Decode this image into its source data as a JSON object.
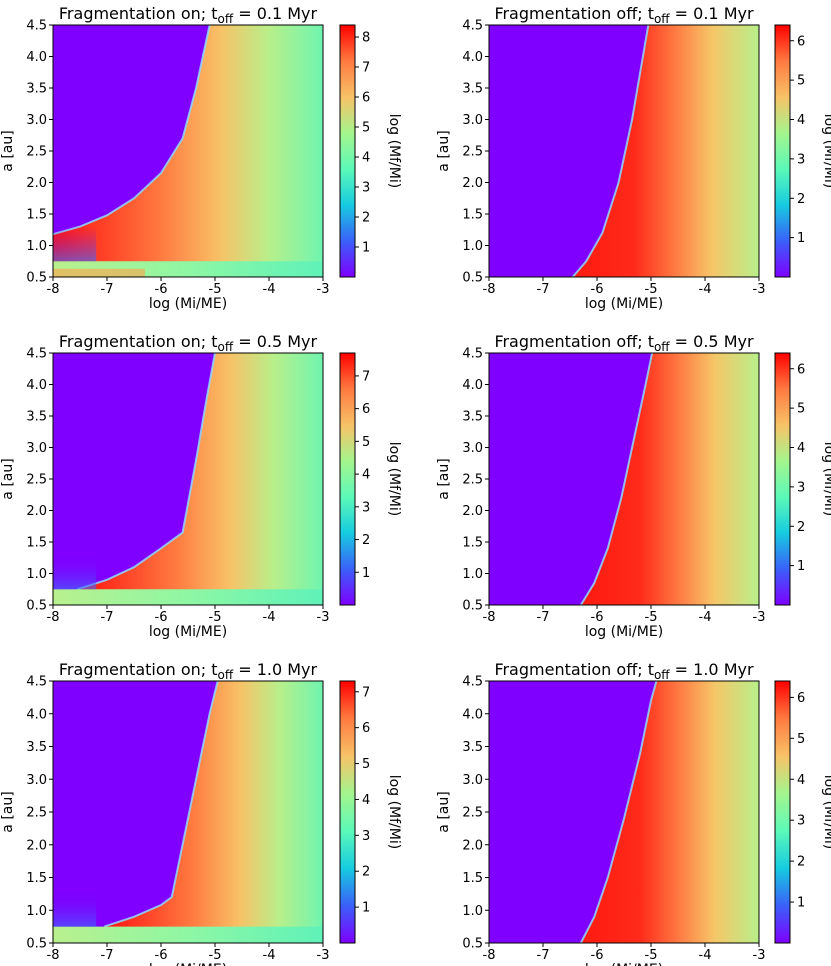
{
  "colormap": [
    "#7f00ff",
    "#3a60f9",
    "#16cce0",
    "#5cf9b8",
    "#a4f58d",
    "#f8c267",
    "#ff7a40",
    "#ff0000"
  ],
  "chart_data": [
    {
      "type": "heatmap",
      "panel": "top-left",
      "title_main": "Fragmentation on; t",
      "title_sub": "off",
      "title_tail": " = 0.1 Myr",
      "xlabel": "log (Mi/ME)",
      "ylabel": "a [au]",
      "xlim": [
        -8,
        -3
      ],
      "ylim": [
        0.5,
        4.5
      ],
      "xticks": [
        "-8",
        "-7",
        "-6",
        "-5",
        "-4",
        "-3"
      ],
      "yticks": [
        "0.5",
        "1.0",
        "1.5",
        "2.0",
        "2.5",
        "3.0",
        "3.5",
        "4.0",
        "4.5"
      ],
      "colorbar_label": "log (Mf/Mi)",
      "colorbar_max": 8.4,
      "colorbar_ticks": [
        "1",
        "2",
        "3",
        "4",
        "5",
        "6",
        "7",
        "8"
      ],
      "fragmentation": true,
      "boundary": [
        [
          -8,
          1.18
        ],
        [
          -7.5,
          1.3
        ],
        [
          -7,
          1.48
        ],
        [
          -6.5,
          1.75
        ],
        [
          -6,
          2.15
        ],
        [
          -5.6,
          2.7
        ],
        [
          -5.35,
          3.5
        ],
        [
          -5.1,
          4.5
        ]
      ],
      "ice_line": 0.75
    },
    {
      "type": "heatmap",
      "panel": "top-right",
      "title_main": "Fragmentation off; t",
      "title_sub": "off",
      "title_tail": " = 0.1 Myr",
      "xlabel": "log (Mi/ME)",
      "ylabel": "a [au]",
      "xlim": [
        -8,
        -3
      ],
      "ylim": [
        0.5,
        4.5
      ],
      "xticks": [
        "-8",
        "-7",
        "-6",
        "-5",
        "-4",
        "-3"
      ],
      "yticks": [
        "0.5",
        "1.0",
        "1.5",
        "2.0",
        "2.5",
        "3.0",
        "3.5",
        "4.0",
        "4.5"
      ],
      "colorbar_label": "log (Mf/Mi)",
      "colorbar_max": 6.4,
      "colorbar_ticks": [
        "1",
        "2",
        "3",
        "4",
        "5",
        "6"
      ],
      "fragmentation": false,
      "boundary": [
        [
          -6.45,
          0.5
        ],
        [
          -6.2,
          0.75
        ],
        [
          -5.9,
          1.2
        ],
        [
          -5.6,
          2.0
        ],
        [
          -5.35,
          3.0
        ],
        [
          -5.15,
          4.0
        ],
        [
          -5.05,
          4.5
        ]
      ]
    },
    {
      "type": "heatmap",
      "panel": "middle-left",
      "title_main": "Fragmentation on; t",
      "title_sub": "off",
      "title_tail": " = 0.5 Myr",
      "xlabel": "log (Mi/ME)",
      "ylabel": "a [au]",
      "xlim": [
        -8,
        -3
      ],
      "ylim": [
        0.5,
        4.5
      ],
      "xticks": [
        "-8",
        "-7",
        "-6",
        "-5",
        "-4",
        "-3"
      ],
      "yticks": [
        "0.5",
        "1.0",
        "1.5",
        "2.0",
        "2.5",
        "3.0",
        "3.5",
        "4.0",
        "4.5"
      ],
      "colorbar_label": "log (Mf/Mi)",
      "colorbar_max": 7.7,
      "colorbar_ticks": [
        "1",
        "2",
        "3",
        "4",
        "5",
        "6",
        "7"
      ],
      "fragmentation": true,
      "boundary": [
        [
          -7.55,
          0.75
        ],
        [
          -7,
          0.9
        ],
        [
          -6.5,
          1.1
        ],
        [
          -6,
          1.4
        ],
        [
          -5.6,
          1.65
        ],
        [
          -5.35,
          2.8
        ],
        [
          -5.15,
          3.8
        ],
        [
          -5.0,
          4.5
        ]
      ],
      "ice_line": 0.75
    },
    {
      "type": "heatmap",
      "panel": "middle-right",
      "title_main": "Fragmentation off; t",
      "title_sub": "off",
      "title_tail": " = 0.5 Myr",
      "xlabel": "log (Mi/ME)",
      "ylabel": "a [au]",
      "xlim": [
        -8,
        -3
      ],
      "ylim": [
        0.5,
        4.5
      ],
      "xticks": [
        "-8",
        "-7",
        "-6",
        "-5",
        "-4",
        "-3"
      ],
      "yticks": [
        "0.5",
        "1.0",
        "1.5",
        "2.0",
        "2.5",
        "3.0",
        "3.5",
        "4.0",
        "4.5"
      ],
      "colorbar_label": "log (Mf/Mi)",
      "colorbar_max": 6.4,
      "colorbar_ticks": [
        "1",
        "2",
        "3",
        "4",
        "5",
        "6"
      ],
      "fragmentation": false,
      "boundary": [
        [
          -6.3,
          0.5
        ],
        [
          -6.05,
          0.85
        ],
        [
          -5.8,
          1.4
        ],
        [
          -5.55,
          2.2
        ],
        [
          -5.3,
          3.2
        ],
        [
          -5.1,
          4.0
        ],
        [
          -4.98,
          4.5
        ]
      ]
    },
    {
      "type": "heatmap",
      "panel": "bottom-left",
      "title_main": "Fragmentation on; t",
      "title_sub": "off",
      "title_tail": " = 1.0 Myr",
      "xlabel": "log (Mi/ME)",
      "ylabel": "a [au]",
      "xlim": [
        -8,
        -3
      ],
      "ylim": [
        0.5,
        4.5
      ],
      "xticks": [
        "-8",
        "-7",
        "-6",
        "-5",
        "-4",
        "-3"
      ],
      "yticks": [
        "0.5",
        "1.0",
        "1.5",
        "2.0",
        "2.5",
        "3.0",
        "3.5",
        "4.0",
        "4.5"
      ],
      "colorbar_label": "log (Mf/Mi)",
      "colorbar_max": 7.3,
      "colorbar_ticks": [
        "1",
        "2",
        "3",
        "4",
        "5",
        "6",
        "7"
      ],
      "fragmentation": true,
      "boundary": [
        [
          -7.05,
          0.75
        ],
        [
          -6.5,
          0.9
        ],
        [
          -6,
          1.08
        ],
        [
          -5.8,
          1.2
        ],
        [
          -5.55,
          2.2
        ],
        [
          -5.3,
          3.2
        ],
        [
          -5.1,
          4.0
        ],
        [
          -4.95,
          4.5
        ]
      ],
      "ice_line": 0.75
    },
    {
      "type": "heatmap",
      "panel": "bottom-right",
      "title_main": "Fragmentation off; t",
      "title_sub": "off",
      "title_tail": " = 1.0 Myr",
      "xlabel": "log (Mi/ME)",
      "ylabel": "a [au]",
      "xlim": [
        -8,
        -3
      ],
      "ylim": [
        0.5,
        4.5
      ],
      "xticks": [
        "-8",
        "-7",
        "-6",
        "-5",
        "-4",
        "-3"
      ],
      "yticks": [
        "0.5",
        "1.0",
        "1.5",
        "2.0",
        "2.5",
        "3.0",
        "3.5",
        "4.0",
        "4.5"
      ],
      "colorbar_label": "log (Mf/Mi)",
      "colorbar_max": 6.4,
      "colorbar_ticks": [
        "1",
        "2",
        "3",
        "4",
        "5",
        "6"
      ],
      "fragmentation": false,
      "boundary": [
        [
          -6.3,
          0.5
        ],
        [
          -6.05,
          0.9
        ],
        [
          -5.8,
          1.5
        ],
        [
          -5.5,
          2.4
        ],
        [
          -5.2,
          3.4
        ],
        [
          -5.0,
          4.2
        ],
        [
          -4.9,
          4.5
        ]
      ]
    }
  ]
}
